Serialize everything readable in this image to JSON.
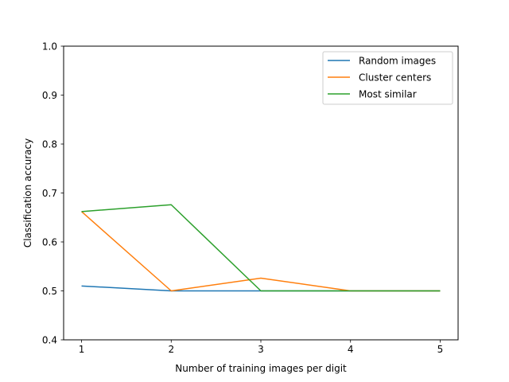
{
  "chart_data": {
    "type": "line",
    "x": [
      1,
      2,
      3,
      4,
      5
    ],
    "xticks": [
      "1",
      "2",
      "3",
      "4",
      "5"
    ],
    "yticks": [
      "0.4",
      "0.5",
      "0.6",
      "0.7",
      "0.8",
      "0.9",
      "1.0"
    ],
    "ytick_values": [
      0.4,
      0.5,
      0.6,
      0.7,
      0.8,
      0.9,
      1.0
    ],
    "xlabel": "Number of training images per digit",
    "ylabel": "Classification accuracy",
    "xlim": [
      0.8,
      5.2
    ],
    "ylim": [
      0.4,
      1.0
    ],
    "grid": false,
    "legend_position": "top-right",
    "series": [
      {
        "name": "Random images",
        "color": "#1f77b4",
        "values": [
          0.51,
          0.5,
          0.5,
          0.5,
          0.5
        ]
      },
      {
        "name": "Cluster centers",
        "color": "#ff7f0e",
        "values": [
          0.662,
          0.5,
          0.526,
          0.5,
          0.5
        ]
      },
      {
        "name": "Most similar",
        "color": "#2ca02c",
        "values": [
          0.662,
          0.676,
          0.5,
          0.5,
          0.5
        ]
      }
    ]
  }
}
